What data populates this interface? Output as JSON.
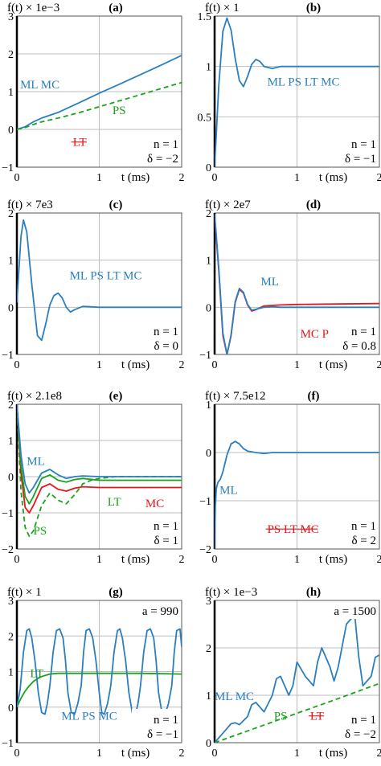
{
  "figure": {
    "colors": {
      "blue": "#2a7fc1",
      "green": "#1aa31a",
      "red": "#e8161a",
      "grid": "#bdbdbd"
    },
    "t_axis_label": "t (ms)"
  },
  "chart_data": [
    {
      "id": "a",
      "type": "line",
      "label": "(a)",
      "scale_label": "f(t) × 1e−3",
      "xlim": [
        0,
        2
      ],
      "ylim": [
        -1,
        3
      ],
      "xticks": [
        "0",
        "1",
        "2"
      ],
      "yticks": [
        "3",
        "2",
        "1",
        "0",
        "−1"
      ],
      "n_label": "n = 1",
      "delta_label": "δ = −2",
      "series_labels": [
        {
          "text": "ML MC",
          "color": "blue"
        },
        {
          "text": "PS",
          "color": "green"
        },
        {
          "text": "LT",
          "color": "red",
          "strike": true
        }
      ],
      "series": [
        {
          "name": "ML MC",
          "color": "blue",
          "dash": false,
          "x": [
            0,
            0.1,
            0.2,
            0.3,
            0.5,
            0.75,
            1,
            1.25,
            1.5,
            1.75,
            2
          ],
          "y": [
            0,
            0.07,
            0.2,
            0.3,
            0.45,
            0.7,
            0.96,
            1.2,
            1.45,
            1.7,
            1.96
          ]
        },
        {
          "name": "PS",
          "color": "green",
          "dash": true,
          "x": [
            0,
            0.1,
            0.2,
            0.3,
            0.5,
            0.75,
            1,
            1.25,
            1.5,
            1.75,
            2
          ],
          "y": [
            0,
            0.05,
            0.13,
            0.2,
            0.3,
            0.44,
            0.6,
            0.76,
            0.92,
            1.08,
            1.24
          ]
        }
      ]
    },
    {
      "id": "b",
      "type": "line",
      "label": "(b)",
      "scale_label": "f(t) × 1",
      "xlim": [
        0,
        2
      ],
      "ylim": [
        0,
        1.5
      ],
      "xticks": [
        "0",
        "1",
        "2"
      ],
      "yticks": [
        "1.5",
        "1",
        "0.5",
        "0"
      ],
      "n_label": "n = 1",
      "delta_label": "δ = −1",
      "series_labels": [
        {
          "text": "ML PS LT MC",
          "color": "blue"
        }
      ],
      "series": [
        {
          "name": "ML PS LT MC",
          "color": "blue",
          "dash": false,
          "x": [
            0,
            0.05,
            0.1,
            0.15,
            0.2,
            0.25,
            0.3,
            0.35,
            0.4,
            0.45,
            0.5,
            0.55,
            0.6,
            0.7,
            0.8,
            1,
            1.5,
            2
          ],
          "y": [
            0,
            0.8,
            1.35,
            1.48,
            1.36,
            1.08,
            0.86,
            0.8,
            0.9,
            1.02,
            1.07,
            1.05,
            1.0,
            0.98,
            1.0,
            1.0,
            1.0,
            1.0
          ]
        }
      ]
    },
    {
      "id": "c",
      "type": "line",
      "label": "(c)",
      "scale_label": "f(t) × 7e3",
      "xlim": [
        0,
        2
      ],
      "ylim": [
        -1,
        2
      ],
      "xticks": [
        "0",
        "1",
        "2"
      ],
      "yticks": [
        "2",
        "1",
        "0",
        "−1"
      ],
      "n_label": "n = 1",
      "delta_label": "δ = 0",
      "series_labels": [
        {
          "text": "ML PS LT MC",
          "color": "blue"
        }
      ],
      "series": [
        {
          "name": "ML PS LT MC",
          "color": "blue",
          "dash": false,
          "x": [
            0,
            0.05,
            0.08,
            0.12,
            0.18,
            0.25,
            0.3,
            0.35,
            0.4,
            0.45,
            0.5,
            0.55,
            0.6,
            0.65,
            0.7,
            0.8,
            0.9,
            1,
            1.5,
            2
          ],
          "y": [
            0.1,
            1.5,
            1.85,
            1.6,
            0.5,
            -0.6,
            -0.7,
            -0.35,
            0.05,
            0.25,
            0.3,
            0.2,
            0.0,
            -0.1,
            -0.05,
            0.02,
            0.01,
            0.0,
            0.0,
            0.0
          ]
        }
      ]
    },
    {
      "id": "d",
      "type": "line",
      "label": "(d)",
      "scale_label": "f(t) × 2e7",
      "xlim": [
        0,
        2
      ],
      "ylim": [
        -1,
        2
      ],
      "xticks": [
        "0",
        "1",
        "2"
      ],
      "yticks": [
        "2",
        "1",
        "0",
        "−1"
      ],
      "n_label": "n = 1",
      "delta_label": "δ = 0.8",
      "series_labels": [
        {
          "text": "ML",
          "color": "blue"
        },
        {
          "text": "MC PS LT",
          "color": "red"
        }
      ],
      "series": [
        {
          "name": "MC PS LT",
          "color": "red",
          "dash": false,
          "x": [
            0,
            0.05,
            0.1,
            0.15,
            0.2,
            0.25,
            0.3,
            0.35,
            0.4,
            0.45,
            0.5,
            0.6,
            0.7,
            0.8,
            1,
            1.5,
            2
          ],
          "y": [
            1.95,
            0.8,
            -0.6,
            -1.0,
            -0.6,
            0.1,
            0.38,
            0.3,
            0.05,
            -0.08,
            -0.05,
            0.03,
            0.04,
            0.05,
            0.06,
            0.07,
            0.08
          ]
        },
        {
          "name": "ML",
          "color": "blue",
          "dash": false,
          "x": [
            0,
            0.05,
            0.1,
            0.15,
            0.2,
            0.25,
            0.3,
            0.35,
            0.4,
            0.45,
            0.5,
            0.6,
            0.7,
            0.8,
            1,
            1.5,
            2
          ],
          "y": [
            1.98,
            0.85,
            -0.55,
            -1.0,
            -0.58,
            0.12,
            0.4,
            0.32,
            0.06,
            -0.06,
            -0.04,
            0.0,
            0.01,
            0.0,
            0.0,
            0.0,
            0.0
          ]
        }
      ]
    },
    {
      "id": "e",
      "type": "line",
      "label": "(e)",
      "scale_label": "f(t) × 2.1e8",
      "xlim": [
        0,
        2
      ],
      "ylim": [
        -2,
        2
      ],
      "xticks": [
        "0",
        "1",
        "2"
      ],
      "yticks": [
        "2",
        "1",
        "0",
        "−1",
        "−2"
      ],
      "n_label": "n = 1",
      "delta_label": "δ = 1",
      "series_labels": [
        {
          "text": "ML",
          "color": "blue"
        },
        {
          "text": "LT",
          "color": "green"
        },
        {
          "text": "MC",
          "color": "red"
        },
        {
          "text": "PS",
          "color": "green"
        }
      ],
      "series": [
        {
          "name": "PS",
          "color": "green",
          "dash": true,
          "x": [
            0,
            0.05,
            0.1,
            0.15,
            0.2,
            0.3,
            0.4,
            0.5,
            0.6,
            0.7,
            0.8,
            0.9,
            1,
            1.2,
            1.5,
            2
          ],
          "y": [
            2,
            -0.4,
            -1.4,
            -1.65,
            -1.5,
            -0.8,
            -0.45,
            -0.65,
            -0.75,
            -0.5,
            -0.2,
            -0.1,
            -0.05,
            0,
            0,
            0
          ]
        },
        {
          "name": "MC",
          "color": "red",
          "dash": false,
          "x": [
            0,
            0.05,
            0.1,
            0.15,
            0.2,
            0.3,
            0.4,
            0.5,
            0.6,
            0.7,
            0.8,
            1,
            1.5,
            2
          ],
          "y": [
            2,
            0.1,
            -0.85,
            -1.0,
            -0.8,
            -0.3,
            -0.2,
            -0.35,
            -0.4,
            -0.32,
            -0.28,
            -0.3,
            -0.3,
            -0.3
          ]
        },
        {
          "name": "LT",
          "color": "green",
          "dash": false,
          "x": [
            0,
            0.05,
            0.1,
            0.15,
            0.2,
            0.3,
            0.4,
            0.5,
            0.6,
            0.7,
            0.8,
            1,
            1.5,
            2
          ],
          "y": [
            2,
            0.3,
            -0.55,
            -0.75,
            -0.55,
            -0.05,
            0.05,
            -0.1,
            -0.15,
            -0.08,
            -0.05,
            -0.1,
            -0.1,
            -0.1
          ]
        },
        {
          "name": "ML",
          "color": "blue",
          "dash": false,
          "x": [
            0,
            0.05,
            0.1,
            0.15,
            0.2,
            0.3,
            0.4,
            0.5,
            0.6,
            0.7,
            0.8,
            1,
            1.5,
            2
          ],
          "y": [
            2,
            0.6,
            -0.2,
            -0.45,
            -0.3,
            0.1,
            0.2,
            0.05,
            -0.05,
            0.0,
            0.02,
            0.0,
            0.0,
            0.0
          ]
        }
      ]
    },
    {
      "id": "f",
      "type": "line",
      "label": "(f)",
      "scale_label": "f(t) × 7.5e12",
      "xlim": [
        0,
        2
      ],
      "ylim": [
        -2,
        1
      ],
      "xticks": [
        "0",
        "1",
        "2"
      ],
      "yticks": [
        "1",
        "0",
        "−1",
        "−2"
      ],
      "n_label": "n = 1",
      "delta_label": "δ = 2",
      "series_labels": [
        {
          "text": "ML",
          "color": "blue"
        },
        {
          "text": "PS LT MC",
          "color": "red",
          "strike": true
        }
      ],
      "series": [
        {
          "name": "ML",
          "color": "blue",
          "dash": false,
          "x": [
            0,
            0.01,
            0.02,
            0.04,
            0.07,
            0.1,
            0.15,
            0.2,
            0.25,
            0.3,
            0.35,
            0.4,
            0.5,
            0.6,
            0.7,
            0.8,
            1,
            1.5,
            2
          ],
          "y": [
            -2,
            -1.1,
            -0.75,
            -0.62,
            -0.55,
            -0.4,
            -0.05,
            0.18,
            0.23,
            0.18,
            0.08,
            0.03,
            0.0,
            -0.02,
            0.0,
            0.0,
            0.0,
            0.0,
            0.0
          ]
        }
      ]
    },
    {
      "id": "g",
      "type": "line",
      "label": "(g)",
      "scale_label": "f(t) × 1",
      "xlim": [
        0,
        2
      ],
      "ylim": [
        -1,
        3
      ],
      "xticks": [
        "0",
        "1",
        "2"
      ],
      "yticks": [
        "3",
        "2",
        "1",
        "0",
        "−1"
      ],
      "a_label": "a = 990",
      "n_label": "n = 1",
      "delta_label": "δ = −1",
      "series_labels": [
        {
          "text": "LT",
          "color": "green"
        },
        {
          "text": "ML PS MC",
          "color": "blue"
        }
      ],
      "series": [
        {
          "name": "LT",
          "color": "green",
          "dash": false,
          "x": [
            0,
            0.05,
            0.1,
            0.15,
            0.2,
            0.25,
            0.3,
            0.4,
            0.5,
            0.6,
            0.8,
            1,
            1.5,
            2
          ],
          "y": [
            0,
            0.25,
            0.45,
            0.6,
            0.72,
            0.8,
            0.86,
            0.93,
            0.95,
            0.95,
            0.95,
            0.95,
            0.95,
            0.93
          ]
        },
        {
          "name": "ML PS MC",
          "color": "blue",
          "dash": false,
          "x": [
            0,
            0.04,
            0.08,
            0.12,
            0.15,
            0.18,
            0.22,
            0.26,
            0.3,
            0.34,
            0.37,
            0.4,
            0.44,
            0.48,
            0.52,
            0.56,
            0.59,
            0.62,
            0.66,
            0.7,
            0.74,
            0.78,
            0.81,
            0.84,
            0.88,
            0.92,
            0.96,
            1,
            1.03,
            1.06,
            1.1,
            1.14,
            1.18,
            1.22,
            1.25,
            1.28,
            1.32,
            1.36,
            1.4,
            1.44,
            1.47,
            1.5,
            1.54,
            1.58,
            1.62,
            1.66,
            1.69,
            1.72,
            1.76,
            1.8,
            1.84,
            1.88,
            1.91,
            1.94,
            1.98,
            2
          ],
          "y": [
            0,
            0.5,
            1.55,
            2.15,
            2.2,
            1.95,
            1.3,
            0.4,
            -0.15,
            -0.2,
            0.1,
            0.6,
            1.55,
            2.15,
            2.2,
            1.95,
            1.3,
            0.4,
            -0.15,
            -0.2,
            0.1,
            0.6,
            1.55,
            2.15,
            2.2,
            1.95,
            1.3,
            0.4,
            -0.15,
            -0.2,
            0.1,
            0.6,
            1.55,
            2.15,
            2.2,
            1.95,
            1.3,
            0.4,
            -0.15,
            -0.2,
            0.1,
            0.6,
            1.55,
            2.15,
            2.2,
            1.95,
            1.3,
            0.4,
            -0.15,
            -0.2,
            0.1,
            0.6,
            1.55,
            2.15,
            2.2,
            1.7
          ]
        }
      ]
    },
    {
      "id": "h",
      "type": "line",
      "label": "(h)",
      "scale_label": "f(t) × 1e−3",
      "xlim": [
        0,
        2
      ],
      "ylim": [
        0,
        3
      ],
      "xticks": [
        "0",
        "1",
        "2"
      ],
      "yticks": [
        "3",
        "2",
        "1",
        "0"
      ],
      "a_label": "a = 1500",
      "n_label": "n = 1",
      "delta_label": "δ = −2",
      "series_labels": [
        {
          "text": "ML MC",
          "color": "blue"
        },
        {
          "text": "PS",
          "color": "green"
        },
        {
          "text": "LT",
          "color": "red",
          "strike": true
        }
      ],
      "series": [
        {
          "name": "PS",
          "color": "green",
          "dash": true,
          "x": [
            0,
            0.5,
            1,
            1.5,
            2
          ],
          "y": [
            0,
            0.31,
            0.62,
            0.93,
            1.25
          ]
        },
        {
          "name": "ML MC",
          "color": "blue",
          "dash": false,
          "x": [
            0,
            0.1,
            0.2,
            0.25,
            0.3,
            0.4,
            0.45,
            0.5,
            0.6,
            0.7,
            0.75,
            0.8,
            0.9,
            0.95,
            1.0,
            1.1,
            1.2,
            1.25,
            1.3,
            1.4,
            1.45,
            1.5,
            1.6,
            1.7,
            1.75,
            1.8,
            1.9,
            1.95,
            2.0
          ],
          "y": [
            0,
            0.2,
            0.4,
            0.42,
            0.38,
            0.55,
            0.8,
            0.85,
            0.65,
            1.0,
            1.35,
            1.4,
            1.0,
            1.2,
            1.7,
            1.4,
            1.2,
            1.7,
            2.0,
            1.6,
            1.3,
            1.6,
            2.5,
            2.7,
            1.8,
            1.2,
            1.4,
            1.8,
            1.85
          ]
        }
      ]
    }
  ]
}
